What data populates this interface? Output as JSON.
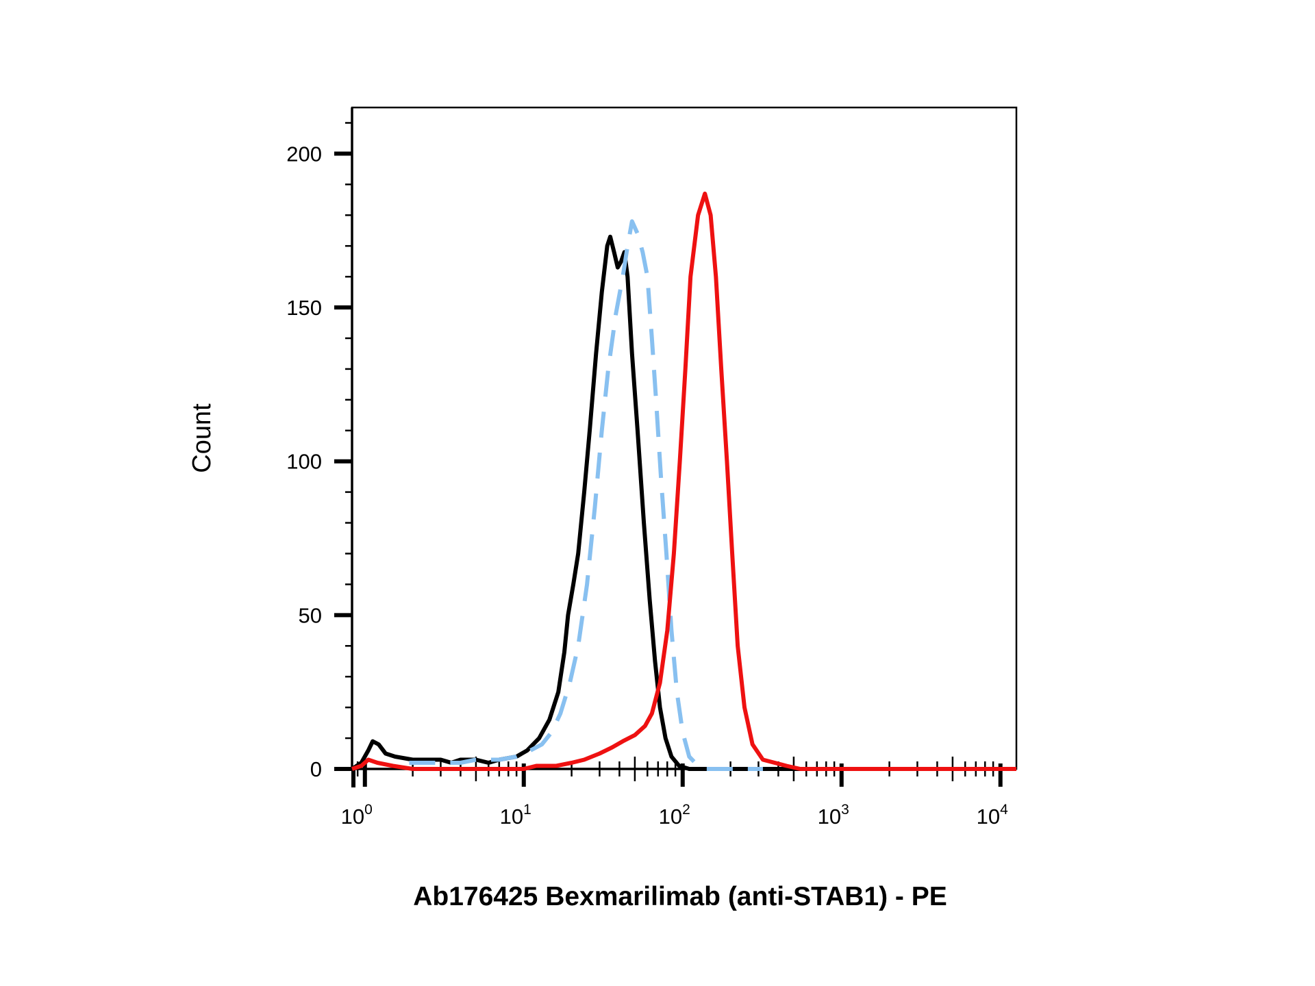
{
  "chart_data": {
    "type": "line",
    "title": "",
    "xlabel": "Ab176425 Bexmarilimab (anti-STAB1) - PE",
    "ylabel": "Count",
    "x_scale": "log",
    "xlim": [
      0.83,
      12600
    ],
    "ylim": [
      0,
      215
    ],
    "x_ticks": [
      1,
      10,
      100,
      1000,
      10000
    ],
    "x_tick_bases": [
      "10",
      "10",
      "10",
      "10",
      "10"
    ],
    "x_tick_exponents": [
      "0",
      "1",
      "2",
      "3",
      "4"
    ],
    "y_ticks": [
      0,
      50,
      100,
      150,
      200
    ],
    "y_tick_labels": [
      "0",
      "50",
      "100",
      "150",
      "200"
    ],
    "grid": false,
    "legend": "none",
    "series": [
      {
        "color": "#000000",
        "style": "solid",
        "points": [
          [
            0.83,
            0
          ],
          [
            0.95,
            2
          ],
          [
            1.05,
            6
          ],
          [
            1.12,
            9
          ],
          [
            1.22,
            8
          ],
          [
            1.35,
            5
          ],
          [
            1.55,
            4
          ],
          [
            2.0,
            3
          ],
          [
            3.0,
            3
          ],
          [
            3.5,
            2
          ],
          [
            4.0,
            3
          ],
          [
            5.0,
            3
          ],
          [
            6.0,
            2
          ],
          [
            7.0,
            3
          ],
          [
            9.0,
            4
          ],
          [
            10.5,
            6
          ],
          [
            12.5,
            10
          ],
          [
            14.5,
            16
          ],
          [
            16.5,
            25
          ],
          [
            18.0,
            38
          ],
          [
            19.0,
            50
          ],
          [
            20.5,
            60
          ],
          [
            22.0,
            70
          ],
          [
            24.0,
            90
          ],
          [
            26.0,
            110
          ],
          [
            28.5,
            135
          ],
          [
            31.0,
            155
          ],
          [
            33.5,
            170
          ],
          [
            35.0,
            173
          ],
          [
            37.0,
            168
          ],
          [
            39.0,
            163
          ],
          [
            41.0,
            165
          ],
          [
            43.0,
            168
          ],
          [
            45.0,
            160
          ],
          [
            48.0,
            135
          ],
          [
            52.0,
            110
          ],
          [
            57.0,
            80
          ],
          [
            62.0,
            55
          ],
          [
            67.0,
            35
          ],
          [
            72.0,
            20
          ],
          [
            78.0,
            10
          ],
          [
            85.0,
            4
          ],
          [
            95.0,
            1
          ],
          [
            110.0,
            0
          ],
          [
            300.0,
            0
          ],
          [
            1000.0,
            0
          ],
          [
            12600.0,
            0
          ]
        ]
      },
      {
        "color": "#88c0f0",
        "style": "dashed",
        "points": [
          [
            1.9,
            2
          ],
          [
            3.0,
            2
          ],
          [
            4.0,
            2
          ],
          [
            5.0,
            3
          ],
          [
            7.0,
            3
          ],
          [
            9.0,
            4
          ],
          [
            11.0,
            6
          ],
          [
            13.0,
            8
          ],
          [
            15.0,
            12
          ],
          [
            17.0,
            18
          ],
          [
            19.5,
            28
          ],
          [
            22.0,
            40
          ],
          [
            25.0,
            60
          ],
          [
            28.0,
            85
          ],
          [
            31.0,
            110
          ],
          [
            34.0,
            130
          ],
          [
            38.0,
            148
          ],
          [
            42.0,
            160
          ],
          [
            45.0,
            170
          ],
          [
            48.0,
            178
          ],
          [
            52.0,
            174
          ],
          [
            56.0,
            168
          ],
          [
            60.0,
            160
          ],
          [
            64.0,
            140
          ],
          [
            68.0,
            120
          ],
          [
            73.0,
            95
          ],
          [
            79.0,
            70
          ],
          [
            85.0,
            45
          ],
          [
            92.0,
            25
          ],
          [
            100.0,
            12
          ],
          [
            110.0,
            4
          ],
          [
            125.0,
            1
          ],
          [
            140.0,
            0
          ],
          [
            320.0,
            0
          ]
        ]
      },
      {
        "color": "#ee1111",
        "style": "solid",
        "points": [
          [
            0.83,
            0
          ],
          [
            0.95,
            1
          ],
          [
            1.05,
            3
          ],
          [
            1.2,
            2
          ],
          [
            1.5,
            1
          ],
          [
            2.0,
            0
          ],
          [
            4.0,
            0
          ],
          [
            8.0,
            0
          ],
          [
            10.0,
            0
          ],
          [
            12.0,
            1
          ],
          [
            16.0,
            1
          ],
          [
            20.0,
            2
          ],
          [
            24.0,
            3
          ],
          [
            30.0,
            5
          ],
          [
            36.0,
            7
          ],
          [
            42.0,
            9
          ],
          [
            50.0,
            11
          ],
          [
            58.0,
            14
          ],
          [
            64.0,
            18
          ],
          [
            72.0,
            28
          ],
          [
            80.0,
            45
          ],
          [
            88.0,
            70
          ],
          [
            96.0,
            100
          ],
          [
            104.0,
            130
          ],
          [
            112.0,
            160
          ],
          [
            125.0,
            180
          ],
          [
            138.0,
            187
          ],
          [
            150.0,
            180
          ],
          [
            162.0,
            160
          ],
          [
            175.0,
            130
          ],
          [
            190.0,
            100
          ],
          [
            205.0,
            70
          ],
          [
            222.0,
            40
          ],
          [
            245.0,
            20
          ],
          [
            275.0,
            8
          ],
          [
            320.0,
            3
          ],
          [
            380.0,
            2
          ],
          [
            450.0,
            1
          ],
          [
            550.0,
            0
          ],
          [
            800.0,
            0
          ],
          [
            2000.0,
            0
          ],
          [
            12600.0,
            0
          ]
        ]
      }
    ]
  }
}
